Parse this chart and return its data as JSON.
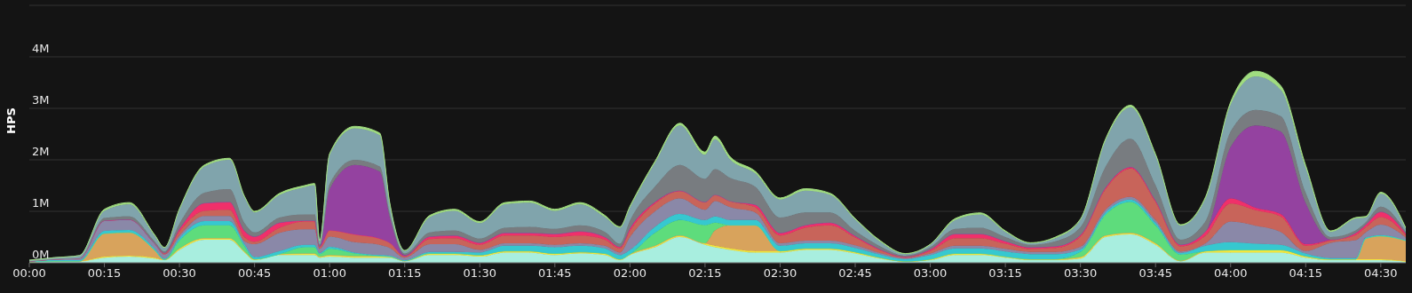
{
  "chart_data": {
    "type": "area",
    "stacked": true,
    "ylabel": "HPS",
    "grid": "y",
    "x": [
      0,
      0.0833,
      0.1667,
      0.25,
      0.3333,
      0.4167,
      0.45,
      0.5,
      0.5833,
      0.6667,
      0.7167,
      0.75,
      0.8333,
      0.9167,
      0.95,
      0.9667,
      1,
      1.0833,
      1.1667,
      1.2,
      1.25,
      1.3333,
      1.4167,
      1.5,
      1.5833,
      1.6667,
      1.75,
      1.8333,
      1.9167,
      1.9667,
      2,
      2.0833,
      2.1667,
      2.25,
      2.2833,
      2.3333,
      2.4167,
      2.5,
      2.5833,
      2.6667,
      2.75,
      2.8333,
      2.9167,
      3,
      3.0833,
      3.1667,
      3.25,
      3.3333,
      3.4167,
      3.5,
      3.5833,
      3.6667,
      3.75,
      3.8333,
      3.9167,
      4,
      4.0833,
      4.1667,
      4.25,
      4.3333,
      4.4167,
      4.45,
      4.5,
      4.5833
    ],
    "xlim": [
      0,
      4.5833
    ],
    "xticks": [
      {
        "value": 0,
        "label": "00:00"
      },
      {
        "value": 0.25,
        "label": "00:15"
      },
      {
        "value": 0.5,
        "label": "00:30"
      },
      {
        "value": 0.75,
        "label": "00:45"
      },
      {
        "value": 1,
        "label": "01:00"
      },
      {
        "value": 1.25,
        "label": "01:15"
      },
      {
        "value": 1.5,
        "label": "01:30"
      },
      {
        "value": 1.75,
        "label": "01:45"
      },
      {
        "value": 2,
        "label": "02:00"
      },
      {
        "value": 2.25,
        "label": "02:15"
      },
      {
        "value": 2.5,
        "label": "02:30"
      },
      {
        "value": 2.75,
        "label": "02:45"
      },
      {
        "value": 3,
        "label": "03:00"
      },
      {
        "value": 3.25,
        "label": "03:15"
      },
      {
        "value": 3.5,
        "label": "03:30"
      },
      {
        "value": 3.75,
        "label": "03:45"
      },
      {
        "value": 4,
        "label": "04:00"
      },
      {
        "value": 4.25,
        "label": "04:15"
      },
      {
        "value": 4.5,
        "label": "04:30"
      }
    ],
    "ylim": [
      0,
      5
    ],
    "yticks": [
      {
        "value": 0,
        "label": "0M"
      },
      {
        "value": 1,
        "label": "1M"
      },
      {
        "value": 2,
        "label": "2M"
      },
      {
        "value": 3,
        "label": "3M"
      },
      {
        "value": 4,
        "label": "4M"
      },
      {
        "value": 5,
        "label": null
      }
    ],
    "series": [
      {
        "color": "#a8eedf",
        "values": [
          0.02,
          0.03,
          0.03,
          0.1,
          0.12,
          0.08,
          0.05,
          0.25,
          0.45,
          0.45,
          0.2,
          0.05,
          0.15,
          0.15,
          0.15,
          0.1,
          0.12,
          0.1,
          0.1,
          0.1,
          0.03,
          0.15,
          0.15,
          0.12,
          0.2,
          0.2,
          0.15,
          0.18,
          0.15,
          0.05,
          0.15,
          0.3,
          0.5,
          0.35,
          0.3,
          0.25,
          0.2,
          0.2,
          0.25,
          0.25,
          0.18,
          0.08,
          0.02,
          0.05,
          0.15,
          0.15,
          0.1,
          0.05,
          0.05,
          0.08,
          0.5,
          0.55,
          0.35,
          0.03,
          0.2,
          0.2,
          0.2,
          0.2,
          0.1,
          0.05,
          0.05,
          0.05,
          0.05,
          0.02
        ]
      },
      {
        "color": "#f2e63c",
        "values": [
          0,
          0,
          0,
          0.02,
          0.02,
          0.02,
          0.01,
          0.03,
          0.03,
          0.03,
          0.02,
          0.02,
          0.02,
          0.03,
          0.03,
          0.02,
          0.03,
          0.03,
          0.03,
          0.02,
          0.01,
          0.03,
          0.03,
          0.03,
          0.03,
          0.03,
          0.03,
          0.03,
          0.03,
          0.02,
          0.02,
          0.03,
          0.03,
          0.03,
          0.03,
          0.03,
          0.03,
          0.03,
          0.03,
          0.03,
          0.03,
          0.02,
          0.01,
          0.02,
          0.03,
          0.03,
          0.02,
          0.02,
          0.02,
          0.03,
          0.03,
          0.03,
          0.03,
          0.01,
          0.03,
          0.05,
          0.05,
          0.05,
          0.03,
          0.02,
          0.02,
          0.02,
          0.02,
          0.01
        ]
      },
      {
        "color": "#d8a35c",
        "values": [
          0,
          0,
          0,
          0.45,
          0.45,
          0.15,
          0,
          0,
          0,
          0,
          0,
          0,
          0,
          0,
          0,
          0,
          0,
          0,
          0,
          0,
          0,
          0,
          0,
          0,
          0,
          0,
          0,
          0,
          0,
          0,
          0,
          0,
          0,
          0,
          0.3,
          0.45,
          0.5,
          0,
          0,
          0,
          0,
          0,
          0,
          0,
          0,
          0,
          0,
          0,
          0,
          0,
          0,
          0,
          0,
          0,
          0,
          0,
          0,
          0,
          0,
          0,
          0,
          0.4,
          0.45,
          0.4
        ]
      },
      {
        "color": "#5edc7c",
        "values": [
          0,
          0,
          0,
          0,
          0,
          0,
          0,
          0.15,
          0.25,
          0.25,
          0.1,
          0,
          0,
          0.12,
          0.12,
          0.05,
          0.12,
          0.05,
          0,
          0,
          0,
          0,
          0,
          0,
          0,
          0,
          0,
          0,
          0,
          0,
          0,
          0.25,
          0.3,
          0.35,
          0.15,
          0,
          0,
          0,
          0,
          0,
          0,
          0,
          0,
          0,
          0,
          0,
          0,
          0,
          0,
          0.1,
          0.4,
          0.6,
          0.35,
          0.12,
          0,
          0,
          0,
          0,
          0,
          0,
          0,
          0,
          0,
          0
        ]
      },
      {
        "color": "#36c8d0",
        "values": [
          0.01,
          0.02,
          0.02,
          0.05,
          0.05,
          0.03,
          0.02,
          0.05,
          0.08,
          0.08,
          0.04,
          0.04,
          0.06,
          0.05,
          0.05,
          0.02,
          0.04,
          0.02,
          0.02,
          0.02,
          0.01,
          0.03,
          0.03,
          0.05,
          0.1,
          0.1,
          0.12,
          0.12,
          0.1,
          0.08,
          0.08,
          0.12,
          0.12,
          0.1,
          0.12,
          0.1,
          0.1,
          0.1,
          0.1,
          0.1,
          0.08,
          0.06,
          0.04,
          0.08,
          0.1,
          0.1,
          0.1,
          0.1,
          0.1,
          0.05,
          0.05,
          0.05,
          0.05,
          0.03,
          0.1,
          0.15,
          0.12,
          0.1,
          0.05,
          0.02,
          0.02,
          0.02,
          0.02,
          0.01
        ]
      },
      {
        "color": "#8a88a8",
        "values": [
          0,
          0.02,
          0.04,
          0.2,
          0.2,
          0.1,
          0.08,
          0.05,
          0.1,
          0.1,
          0.06,
          0.25,
          0.35,
          0.3,
          0.3,
          0.08,
          0.2,
          0.2,
          0.2,
          0.15,
          0.05,
          0.15,
          0.15,
          0.05,
          0.05,
          0.05,
          0.05,
          0.05,
          0.05,
          0.05,
          0.25,
          0.3,
          0.3,
          0.2,
          0.3,
          0.25,
          0.15,
          0.05,
          0.05,
          0.05,
          0.05,
          0.03,
          0.02,
          0.03,
          0.05,
          0.05,
          0.05,
          0.04,
          0.04,
          0.05,
          0.05,
          0.05,
          0.05,
          0.03,
          0.05,
          0.4,
          0.35,
          0.25,
          0.05,
          0.3,
          0.35,
          0.1,
          0.2,
          0.05
        ]
      },
      {
        "color": "#c8645a",
        "values": [
          0,
          0,
          0,
          0,
          0,
          0,
          0.02,
          0.08,
          0.1,
          0.12,
          0.08,
          0.05,
          0.1,
          0.15,
          0.15,
          0.04,
          0.12,
          0.15,
          0.12,
          0.1,
          0.03,
          0.1,
          0.12,
          0.1,
          0.15,
          0.15,
          0.15,
          0.15,
          0.12,
          0.08,
          0.12,
          0.15,
          0.15,
          0.15,
          0.12,
          0.12,
          0.1,
          0.15,
          0.25,
          0.3,
          0.15,
          0.05,
          0.02,
          0.05,
          0.15,
          0.15,
          0.1,
          0.06,
          0.08,
          0.2,
          0.4,
          0.55,
          0.35,
          0.1,
          0.15,
          0.35,
          0.3,
          0.3,
          0.1,
          0.04,
          0.1,
          0.1,
          0.15,
          0.05
        ]
      },
      {
        "color": "#f0306a",
        "values": [
          0,
          0,
          0,
          0,
          0,
          0,
          0.01,
          0.05,
          0.15,
          0.15,
          0.12,
          0.1,
          0.1,
          0.02,
          0.02,
          0,
          0,
          0,
          0,
          0,
          0,
          0.05,
          0.05,
          0.04,
          0.05,
          0.05,
          0.06,
          0.08,
          0.05,
          0.03,
          0.05,
          0.03,
          0,
          0,
          0,
          0,
          0.05,
          0.05,
          0.05,
          0.05,
          0.03,
          0.02,
          0.01,
          0.03,
          0.08,
          0.08,
          0.05,
          0.03,
          0.03,
          0.03,
          0.03,
          0.03,
          0.03,
          0.03,
          0.08,
          0.1,
          0.05,
          0.05,
          0.03,
          0.02,
          0.04,
          0.05,
          0.1,
          0.03
        ]
      },
      {
        "color": "#9442a0",
        "values": [
          0,
          0,
          0,
          0,
          0,
          0,
          0,
          0,
          0,
          0,
          0,
          0,
          0,
          0,
          0,
          0,
          0.8,
          1.35,
          1.3,
          0.5,
          0.02,
          0,
          0,
          0,
          0,
          0,
          0,
          0,
          0,
          0,
          0,
          0,
          0,
          0,
          0,
          0,
          0,
          0,
          0,
          0,
          0,
          0,
          0,
          0,
          0,
          0,
          0,
          0,
          0,
          0,
          0,
          0,
          0,
          0,
          0,
          1.0,
          1.6,
          1.6,
          0.8,
          0,
          0,
          0,
          0,
          0
        ]
      },
      {
        "color": "#787c80",
        "values": [
          0,
          0,
          0,
          0.05,
          0.06,
          0.04,
          0.03,
          0.1,
          0.2,
          0.25,
          0.15,
          0.08,
          0.1,
          0.12,
          0.12,
          0.04,
          0.1,
          0.1,
          0.1,
          0.07,
          0.03,
          0.08,
          0.1,
          0.08,
          0.1,
          0.12,
          0.1,
          0.12,
          0.1,
          0.06,
          0.15,
          0.3,
          0.5,
          0.45,
          0.5,
          0.45,
          0.35,
          0.3,
          0.25,
          0.2,
          0.1,
          0.06,
          0.02,
          0.04,
          0.1,
          0.12,
          0.08,
          0.05,
          0.1,
          0.15,
          0.4,
          0.55,
          0.3,
          0.1,
          0.2,
          0.3,
          0.3,
          0.3,
          0.2,
          0.05,
          0.05,
          0.05,
          0.1,
          0.03
        ]
      },
      {
        "color": "#80a4ac",
        "values": [
          0.02,
          0.03,
          0.05,
          0.14,
          0.24,
          0.11,
          0.07,
          0.27,
          0.51,
          0.57,
          0.5,
          0.39,
          0.44,
          0.53,
          0.57,
          0.07,
          0.56,
          0.61,
          0.61,
          0.18,
          0.05,
          0.3,
          0.38,
          0.3,
          0.46,
          0.47,
          0.35,
          0.41,
          0.29,
          0.31,
          0.25,
          0.46,
          0.77,
          0.47,
          0.58,
          0.36,
          0.26,
          0.35,
          0.42,
          0.34,
          0.22,
          0.09,
          0.03,
          0.05,
          0.17,
          0.26,
          0.1,
          0.03,
          0.06,
          0.14,
          0.51,
          0.61,
          0.57,
          0.27,
          0.44,
          0.52,
          0.65,
          0.51,
          0.48,
          0.1,
          0.23,
          0.09,
          0.25,
          0.06
        ]
      },
      {
        "color": "#a0dc80",
        "values": [
          0,
          0,
          0,
          0.03,
          0.03,
          0.02,
          0.01,
          0.02,
          0.03,
          0.03,
          0.02,
          0.02,
          0.03,
          0.03,
          0.03,
          0.01,
          0.03,
          0.04,
          0.04,
          0.03,
          0.01,
          0.03,
          0.03,
          0.03,
          0.03,
          0.03,
          0.03,
          0.03,
          0.03,
          0.02,
          0.03,
          0.03,
          0.04,
          0.05,
          0.06,
          0.05,
          0.04,
          0.03,
          0.04,
          0.03,
          0.02,
          0.02,
          0.01,
          0.01,
          0.03,
          0.03,
          0.02,
          0.01,
          0.02,
          0.02,
          0.03,
          0.04,
          0.03,
          0.02,
          0.03,
          0.05,
          0.1,
          0.08,
          0.05,
          0.02,
          0.02,
          0.02,
          0.03,
          0.02
        ]
      }
    ]
  }
}
